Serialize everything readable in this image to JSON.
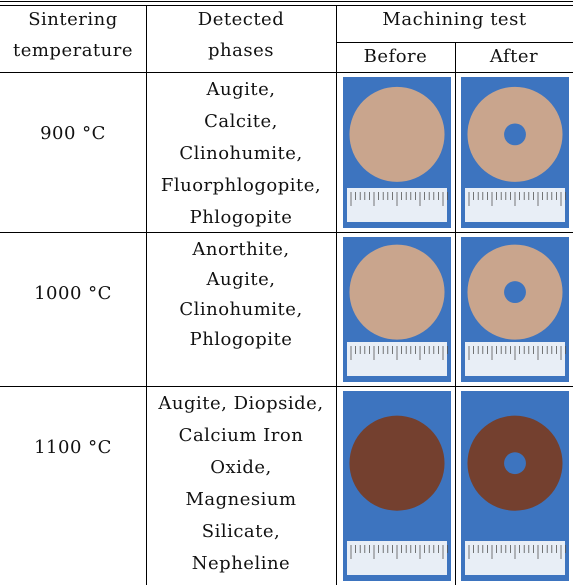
{
  "table": {
    "header": {
      "sintering": [
        "Sintering",
        "temperature"
      ],
      "phases": [
        "Detected",
        "phases"
      ],
      "machining": "Machining test",
      "before": "Before",
      "after": "After"
    },
    "rows": [
      {
        "temperature": "900 °C",
        "phases": [
          "Augite,",
          "Calcite,",
          "Clinohumite,",
          "Fluorphlogopite,",
          "Phlogopite"
        ]
      },
      {
        "temperature": "1000 °C",
        "phases": [
          "Anorthite,",
          "Augite,",
          "Clinohumite,",
          "Phlogopite"
        ]
      },
      {
        "temperature": "1100 °C",
        "phases": [
          "Augite, Diopside,",
          "Calcium Iron",
          "Oxide,",
          "Magnesium",
          "Silicate,",
          "Nepheline"
        ]
      }
    ]
  }
}
